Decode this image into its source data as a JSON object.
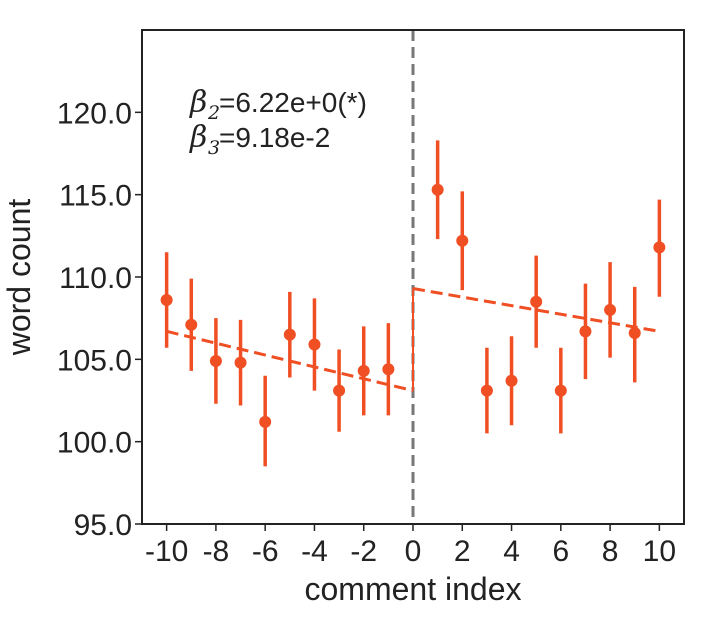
{
  "chart_data": {
    "type": "scatter",
    "xlabel": "comment index",
    "ylabel": "word count",
    "xlim": [
      -11,
      11
    ],
    "ylim": [
      95,
      125
    ],
    "xticks": [
      -10,
      -8,
      -6,
      -4,
      -2,
      0,
      2,
      4,
      6,
      8,
      10
    ],
    "xtick_labels": [
      "-10",
      "-8",
      "-6",
      "-4",
      "-2",
      "0",
      "2",
      "4",
      "6",
      "8",
      "10"
    ],
    "yticks": [
      95,
      100,
      105,
      110,
      115,
      120
    ],
    "ytick_labels": [
      "95.0",
      "100.0",
      "105.0",
      "110.0",
      "115.0",
      "120.0"
    ],
    "grid": false,
    "series": [
      {
        "x": [
          -10,
          -9,
          -8,
          -7,
          -6,
          -5,
          -4,
          -3,
          -2,
          -1,
          1,
          2,
          3,
          4,
          5,
          6,
          7,
          8,
          9,
          10
        ],
        "y": [
          108.6,
          107.1,
          104.9,
          104.8,
          101.2,
          106.5,
          105.9,
          103.1,
          104.3,
          104.4,
          115.3,
          112.2,
          103.1,
          103.7,
          108.5,
          103.1,
          106.7,
          108.0,
          106.6,
          111.8
        ],
        "yerr_low": [
          105.7,
          104.3,
          102.3,
          102.2,
          98.5,
          103.9,
          103.1,
          100.6,
          101.6,
          101.6,
          112.3,
          109.2,
          100.5,
          101.0,
          105.7,
          100.5,
          103.8,
          105.1,
          103.6,
          108.8
        ],
        "yerr_high": [
          111.5,
          109.9,
          107.5,
          107.4,
          104.0,
          109.1,
          108.7,
          105.6,
          107.0,
          107.2,
          118.3,
          115.2,
          105.7,
          106.4,
          111.3,
          105.7,
          109.6,
          110.9,
          109.4,
          114.7
        ],
        "color": "#f04e23"
      }
    ],
    "fit_lines": [
      {
        "x": [
          -10,
          0
        ],
        "y": [
          106.7,
          103.1
        ],
        "style": "dashed",
        "color": "#f04e23"
      },
      {
        "x": [
          0,
          10
        ],
        "y": [
          109.3,
          106.7
        ],
        "style": "dashed",
        "color": "#f04e23"
      }
    ],
    "connector": {
      "x": [
        0,
        0
      ],
      "y": [
        103.1,
        109.3
      ],
      "color": "#f04e23"
    },
    "vline": {
      "x": 0,
      "style": "dashed",
      "color": "#777777"
    },
    "annotations": [
      {
        "beta": "β",
        "sub": "2",
        "text": " =6.22e+0(*)"
      },
      {
        "beta": "β",
        "sub": "3",
        "text": " =9.18e-2"
      }
    ]
  }
}
